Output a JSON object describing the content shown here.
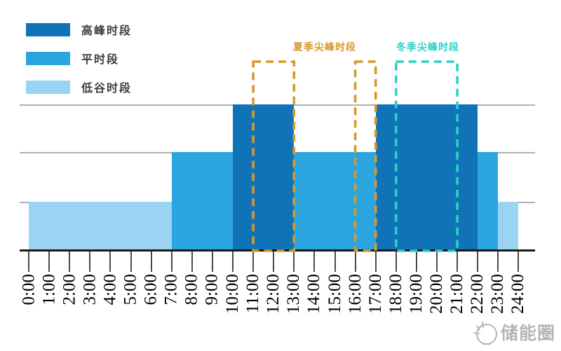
{
  "chart_data": {
    "type": "bar",
    "title": "",
    "xlabel": "",
    "ylabel": "",
    "x_range": [
      0,
      24
    ],
    "x_ticks": [
      "0:00",
      "1:00",
      "2:00",
      "3:00",
      "4:00",
      "5:00",
      "6:00",
      "7:00",
      "8:00",
      "9:00",
      "10:00",
      "11:00",
      "12:00",
      "13:00",
      "14:00",
      "15:00",
      "16:00",
      "17:00",
      "18:00",
      "19:00",
      "20:00",
      "21:00",
      "22:00",
      "23:00",
      "24:00"
    ],
    "levels": {
      "valley": 1,
      "flat": 2,
      "peak": 3
    },
    "grid": true,
    "legend_position": "top-left",
    "segments": [
      {
        "start": 0,
        "end": 7,
        "period": "valley",
        "label": "低谷时段",
        "level": 1
      },
      {
        "start": 7,
        "end": 10,
        "period": "flat",
        "label": "平时段",
        "level": 2
      },
      {
        "start": 10,
        "end": 13,
        "period": "peak",
        "label": "高峰时段",
        "level": 3
      },
      {
        "start": 13,
        "end": 17,
        "period": "flat",
        "label": "平时段",
        "level": 2
      },
      {
        "start": 17,
        "end": 22,
        "period": "peak",
        "label": "高峰时段",
        "level": 3
      },
      {
        "start": 22,
        "end": 23,
        "period": "flat",
        "label": "平时段",
        "level": 2
      },
      {
        "start": 23,
        "end": 24,
        "period": "valley",
        "label": "低谷时段",
        "level": 1
      }
    ],
    "annotations": [
      {
        "id": "summer",
        "label": "夏季尖峰时段",
        "color": "#D9982F",
        "boxes": [
          {
            "start": 11,
            "end": 13
          },
          {
            "start": 16,
            "end": 17
          }
        ]
      },
      {
        "id": "winter",
        "label": "冬季尖峰时段",
        "color": "#2ED0C6",
        "boxes": [
          {
            "start": 18,
            "end": 21
          }
        ]
      }
    ]
  },
  "legend": {
    "items": [
      {
        "label": "高峰时段",
        "period": "peak"
      },
      {
        "label": "平时段",
        "period": "flat"
      },
      {
        "label": "低谷时段",
        "period": "valley"
      }
    ]
  },
  "colors": {
    "peak": "#1173B7",
    "flat": "#2AA5E0",
    "valley": "#9AD4F2",
    "summer_annotation": "#D9982F",
    "winter_annotation": "#2ED0C6",
    "gridline": "#B0B0B0",
    "axis": "#1A1A1A"
  },
  "watermark": {
    "text": "储能圈"
  }
}
